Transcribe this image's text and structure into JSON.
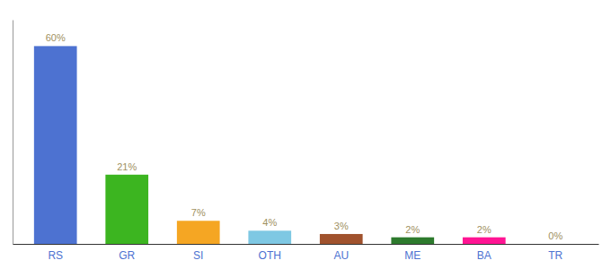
{
  "chart_data": {
    "type": "bar",
    "categories": [
      "RS",
      "GR",
      "SI",
      "OTH",
      "AU",
      "ME",
      "BA",
      "TR"
    ],
    "values": [
      60,
      21,
      7,
      4,
      3,
      2,
      2,
      0
    ],
    "value_labels": [
      "60%",
      "21%",
      "7%",
      "4%",
      "3%",
      "2%",
      "2%",
      "0%"
    ],
    "colors": [
      "#4d72d1",
      "#3cb520",
      "#f5a623",
      "#7ec8e3",
      "#a0522d",
      "#2d7a2d",
      "#ff1493",
      "#dddddd"
    ],
    "ylim": [
      0,
      68
    ],
    "data_labels": true,
    "tick_labels": "x"
  }
}
